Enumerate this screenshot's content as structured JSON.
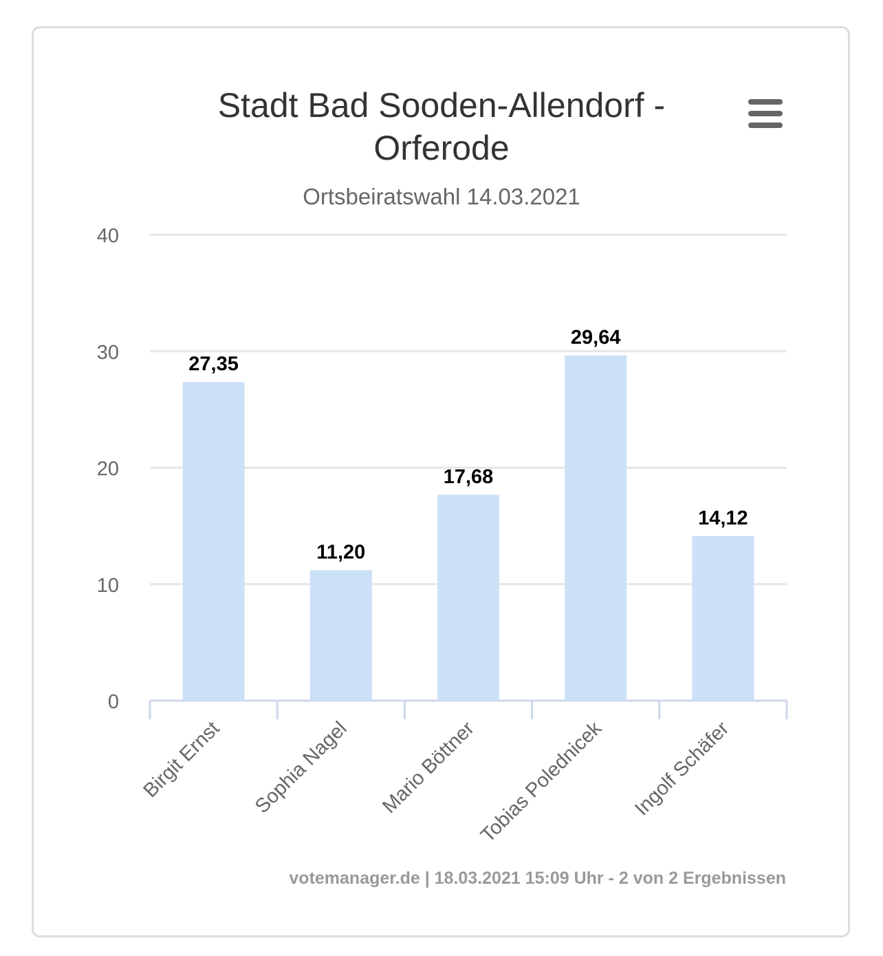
{
  "chart_data": {
    "type": "bar",
    "title_line1": "Stadt Bad Sooden-Allendorf -",
    "title_line2": "Orferode",
    "subtitle": "Ortsbeiratswahl 14.03.2021",
    "categories": [
      "Birgit Ernst",
      "Sophia Nagel",
      "Mario Böttner",
      "Tobias Polednicek",
      "Ingolf Schäfer"
    ],
    "values": [
      27.35,
      11.2,
      17.68,
      29.64,
      14.12
    ],
    "data_labels": [
      "27,35",
      "11,20",
      "17,68",
      "29,64",
      "14,12"
    ],
    "yticks": [
      0,
      10,
      20,
      30,
      40
    ],
    "ylim": [
      0,
      40
    ],
    "xlabel": "",
    "ylabel": "",
    "grid": true,
    "legend": "none",
    "bar_color": "#cce0f8",
    "grid_color": "#e6e6e6",
    "axis_color": "#ccd6eb"
  },
  "credits": "votemanager.de | 18.03.2021 15:09 Uhr - 2 von 2 Ergebnissen",
  "menu": {
    "icon": "hamburger-menu-icon"
  }
}
